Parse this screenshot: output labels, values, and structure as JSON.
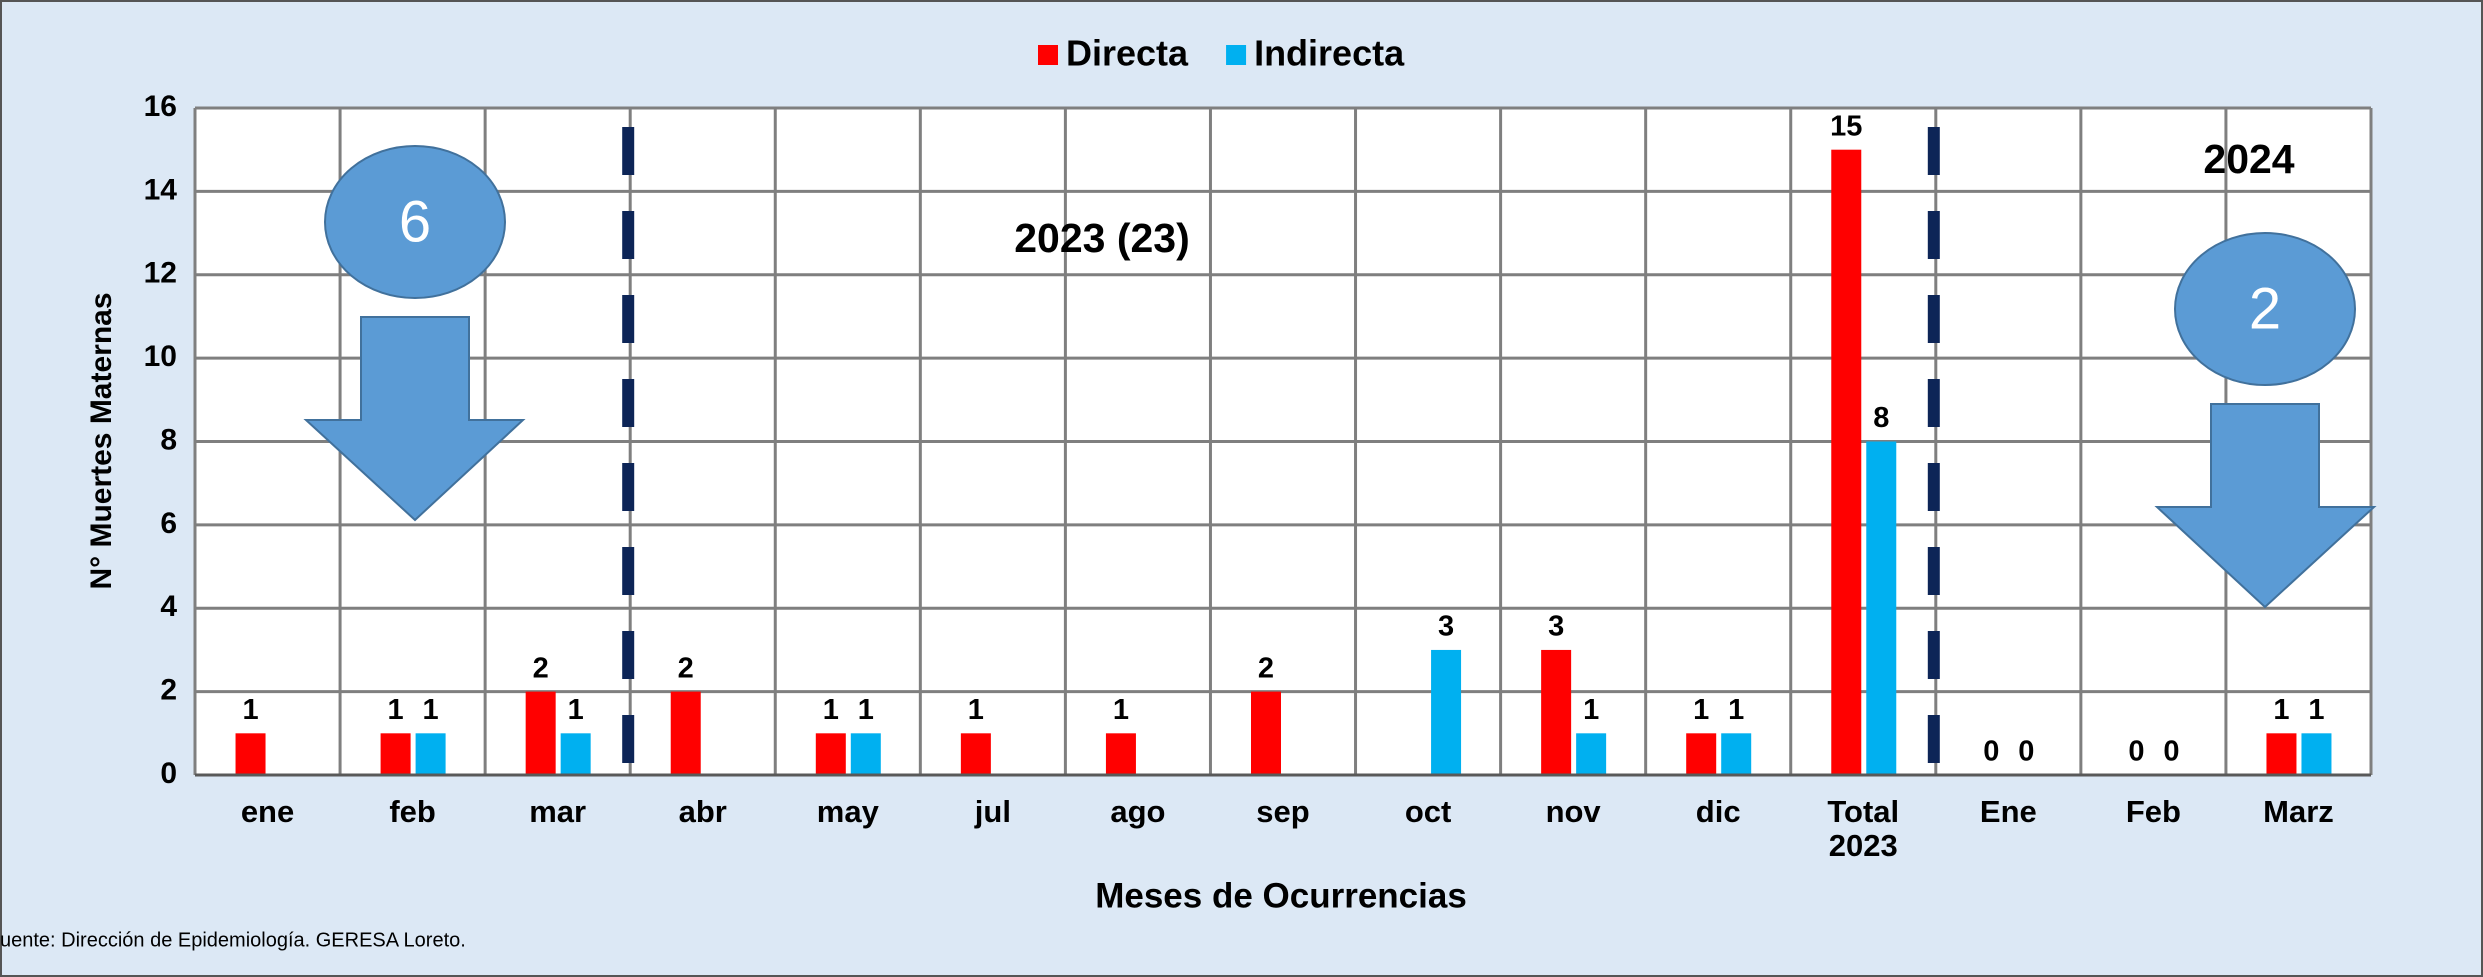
{
  "chart_data": {
    "type": "bar",
    "y_label": "N° Muertes Maternas",
    "x_label": "Meses de Ocurrencias",
    "categories": [
      "ene",
      "feb",
      "mar",
      "abr",
      "may",
      "jul",
      "ago",
      "sep",
      "oct",
      "nov",
      "dic",
      "Total 2023",
      "Ene",
      "Feb",
      "Marz"
    ],
    "series": [
      {
        "name": "Directa",
        "color": "#ff0000",
        "values": [
          1,
          1,
          2,
          2,
          1,
          1,
          1,
          2,
          null,
          3,
          1,
          15,
          0,
          0,
          1
        ]
      },
      {
        "name": "Indirecta",
        "color": "#00b0f0",
        "values": [
          null,
          1,
          1,
          null,
          1,
          null,
          null,
          null,
          3,
          1,
          1,
          8,
          0,
          0,
          1
        ]
      }
    ],
    "ylim": [
      0,
      16
    ],
    "yticks": [
      0,
      2,
      4,
      6,
      8,
      10,
      12,
      14,
      16
    ],
    "grid": true,
    "annotations": [
      "6",
      "2",
      "2023 (23)",
      "2024"
    ],
    "source": "uente: Dirección de Epidemiología. GERESA Loreto."
  }
}
